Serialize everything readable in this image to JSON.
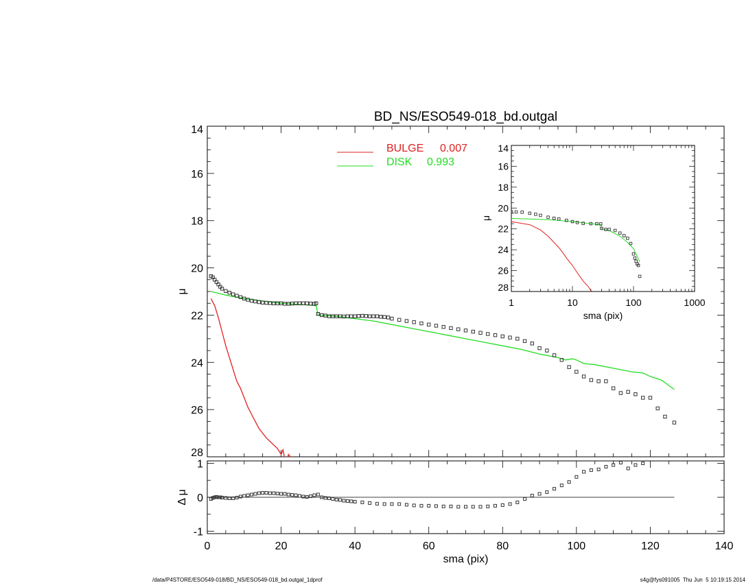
{
  "figure": {
    "footer_left": "/data/P4STORE/ESO549-018/BD_NS/ESO549-018_bd.outgal_1dprof",
    "footer_right": "s4g@fys091005  Thu Jun  5 10:19:15 2014"
  },
  "chart_data": [
    {
      "id": "main",
      "type": "line",
      "title": "BD_NS/ESO549-018_bd.outgal",
      "xlabel": "",
      "ylabel": "μ",
      "xlim": [
        0,
        140
      ],
      "ylim": [
        28,
        14
      ],
      "y_reversed": true,
      "yticks": [
        14,
        16,
        18,
        20,
        22,
        24,
        26,
        28
      ],
      "legend": [
        {
          "name": "BULGE",
          "value": "0.007",
          "color": "#e0201e"
        },
        {
          "name": "DISK",
          "value": "0.993",
          "color": "#22dd22"
        }
      ],
      "series": [
        {
          "name": "BULGE",
          "style": "line",
          "color": "#e0201e",
          "x": [
            1,
            2,
            3,
            4,
            5,
            6,
            7,
            8,
            9,
            10,
            11,
            12,
            13,
            14,
            15,
            16,
            17,
            18,
            19,
            20,
            20.5,
            21,
            21.5,
            22,
            23,
            24,
            25
          ],
          "y": [
            21.3,
            21.6,
            22.1,
            22.7,
            23.3,
            23.8,
            24.3,
            24.8,
            25.1,
            25.5,
            25.9,
            26.2,
            26.5,
            26.8,
            27.0,
            27.2,
            27.35,
            27.5,
            27.65,
            27.9,
            27.7,
            28.1,
            28.2,
            27.9,
            28.1,
            28.2,
            28.1
          ]
        },
        {
          "name": "DISK",
          "style": "line",
          "color": "#22dd22",
          "x": [
            1,
            5,
            10,
            15,
            20,
            25,
            29.5,
            30,
            35,
            40,
            45,
            50,
            55,
            60,
            65,
            70,
            75,
            80,
            85,
            90,
            95,
            97,
            99,
            100,
            102,
            105,
            110,
            115,
            118,
            120,
            123,
            126.5
          ],
          "y": [
            21.0,
            21.15,
            21.3,
            21.4,
            21.5,
            21.55,
            21.6,
            22.0,
            22.05,
            22.15,
            22.25,
            22.4,
            22.55,
            22.7,
            22.85,
            23.0,
            23.15,
            23.3,
            23.45,
            23.65,
            23.8,
            23.9,
            23.85,
            23.9,
            24.05,
            24.1,
            24.25,
            24.4,
            24.45,
            24.6,
            24.75,
            25.15
          ]
        },
        {
          "name": "data",
          "style": "squares",
          "color": "#000000",
          "x": [
            1,
            1.5,
            2,
            2.5,
            3,
            3.5,
            4,
            5,
            6,
            7,
            8,
            9,
            10,
            11,
            12,
            13,
            14,
            15,
            16,
            17,
            18,
            19,
            20,
            21,
            22,
            23,
            24,
            25,
            26,
            27,
            28,
            29,
            29.5,
            30,
            31,
            32,
            33,
            34,
            35,
            36,
            37,
            38,
            39,
            40,
            41,
            42,
            43,
            44,
            45,
            46,
            47,
            48,
            49,
            50,
            52,
            54,
            56,
            58,
            60,
            62,
            64,
            66,
            68,
            70,
            72,
            74,
            76,
            78,
            80,
            82,
            84,
            86,
            88,
            90,
            92,
            94,
            96,
            98,
            100,
            102,
            104,
            106,
            108,
            110,
            112,
            114,
            116,
            118,
            120,
            122,
            124,
            126.5
          ],
          "y": [
            20.35,
            20.4,
            20.5,
            20.6,
            20.7,
            20.8,
            20.88,
            20.98,
            21.05,
            21.12,
            21.18,
            21.24,
            21.3,
            21.35,
            21.39,
            21.42,
            21.45,
            21.47,
            21.48,
            21.49,
            21.5,
            21.5,
            21.5,
            21.52,
            21.52,
            21.51,
            21.5,
            21.5,
            21.5,
            21.5,
            21.51,
            21.52,
            21.5,
            21.95,
            22.0,
            22.02,
            22.05,
            22.05,
            22.05,
            22.05,
            22.06,
            22.05,
            22.05,
            22.05,
            22.04,
            22.03,
            22.04,
            22.05,
            22.05,
            22.05,
            22.07,
            22.08,
            22.1,
            22.15,
            22.2,
            22.25,
            22.3,
            22.35,
            22.4,
            22.45,
            22.5,
            22.55,
            22.6,
            22.65,
            22.7,
            22.75,
            22.8,
            22.85,
            22.9,
            22.95,
            23.0,
            23.1,
            23.2,
            23.4,
            23.5,
            23.7,
            23.9,
            24.2,
            24.4,
            24.6,
            24.75,
            24.8,
            24.8,
            25.1,
            25.3,
            25.25,
            25.35,
            25.5,
            25.5,
            25.95,
            26.3,
            26.55
          ]
        }
      ]
    },
    {
      "id": "residual",
      "type": "scatter",
      "xlabel": "sma (pix)",
      "ylabel": "Δ μ",
      "xlim": [
        0,
        140
      ],
      "ylim": [
        -1.1,
        1.1
      ],
      "yticks": [
        -1,
        0,
        1
      ],
      "xticks": [
        0,
        20,
        40,
        60,
        80,
        100,
        120,
        140
      ],
      "zero_line": {
        "x": [
          0,
          126.5
        ],
        "y": 0
      },
      "series": [
        {
          "name": "residual",
          "style": "squares",
          "color": "#000000",
          "x": [
            1,
            1.5,
            2,
            2.5,
            3,
            3.5,
            4,
            5,
            6,
            7,
            8,
            9,
            10,
            11,
            12,
            13,
            14,
            15,
            16,
            17,
            18,
            19,
            20,
            21,
            22,
            23,
            24,
            25,
            26,
            27,
            28,
            29,
            30,
            31,
            32,
            33,
            34,
            35,
            36,
            37,
            38,
            39,
            40,
            42,
            44,
            46,
            48,
            50,
            52,
            54,
            56,
            58,
            60,
            62,
            64,
            66,
            68,
            70,
            72,
            74,
            76,
            78,
            80,
            82,
            84,
            86,
            88,
            90,
            92,
            94,
            96,
            98,
            100,
            102,
            104,
            106,
            108,
            110,
            112,
            114,
            116,
            118
          ],
          "y": [
            -0.05,
            -0.02,
            0.0,
            0.01,
            0.0,
            0.0,
            -0.01,
            -0.02,
            -0.03,
            -0.03,
            -0.01,
            0.02,
            0.04,
            0.06,
            0.08,
            0.1,
            0.12,
            0.13,
            0.13,
            0.12,
            0.12,
            0.11,
            0.1,
            0.1,
            0.08,
            0.07,
            0.06,
            0.04,
            0.02,
            0.01,
            0.03,
            0.06,
            0.08,
            0.0,
            -0.02,
            -0.03,
            -0.05,
            -0.07,
            -0.08,
            -0.1,
            -0.11,
            -0.12,
            -0.13,
            -0.15,
            -0.17,
            -0.19,
            -0.2,
            -0.2,
            -0.2,
            -0.22,
            -0.24,
            -0.25,
            -0.25,
            -0.26,
            -0.27,
            -0.27,
            -0.28,
            -0.28,
            -0.28,
            -0.28,
            -0.27,
            -0.25,
            -0.23,
            -0.2,
            -0.15,
            -0.05,
            0.05,
            0.1,
            0.15,
            0.25,
            0.35,
            0.45,
            0.6,
            0.75,
            0.8,
            0.82,
            0.9,
            0.95,
            1.02,
            0.85,
            0.95,
            1.0
          ]
        }
      ]
    },
    {
      "id": "inset",
      "type": "line",
      "xlabel": "sma (pix)",
      "ylabel": "μ",
      "xscale": "log",
      "xlim": [
        1,
        1000
      ],
      "ylim": [
        28,
        14
      ],
      "y_reversed": true,
      "yticks": [
        14,
        16,
        18,
        20,
        22,
        24,
        26,
        28
      ],
      "xticks": [
        1,
        10,
        100,
        1000
      ],
      "series": [
        {
          "name": "BULGE",
          "style": "line",
          "color": "#e0201e",
          "x": [
            1,
            2,
            3,
            4,
            5,
            6,
            7,
            8,
            10,
            12,
            15,
            18,
            20,
            22
          ],
          "y": [
            21.3,
            21.6,
            22.1,
            22.7,
            23.3,
            23.8,
            24.3,
            24.8,
            25.5,
            26.2,
            27.0,
            27.5,
            27.9,
            28.1
          ]
        },
        {
          "name": "DISK",
          "style": "line",
          "color": "#22dd22",
          "x": [
            1,
            2,
            5,
            10,
            20,
            29.5,
            30,
            40,
            60,
            80,
            100,
            126.5
          ],
          "y": [
            21.0,
            21.05,
            21.15,
            21.3,
            21.5,
            21.6,
            22.0,
            22.15,
            22.7,
            23.3,
            23.9,
            25.15
          ]
        },
        {
          "name": "data",
          "style": "squares",
          "color": "#000000",
          "x": [
            1,
            1.2,
            1.5,
            2,
            2.5,
            3,
            4,
            5,
            6,
            8,
            10,
            12,
            15,
            20,
            25,
            29,
            30,
            35,
            40,
            50,
            60,
            70,
            80,
            90,
            100,
            105,
            110,
            115,
            120,
            126.5
          ],
          "y": [
            20.35,
            20.38,
            20.4,
            20.5,
            20.6,
            20.7,
            20.88,
            20.98,
            21.05,
            21.18,
            21.3,
            21.39,
            21.47,
            21.5,
            21.5,
            21.52,
            21.95,
            22.05,
            22.05,
            22.15,
            22.4,
            22.65,
            22.9,
            23.4,
            24.4,
            24.8,
            25.1,
            25.35,
            25.5,
            26.55
          ]
        }
      ]
    }
  ]
}
